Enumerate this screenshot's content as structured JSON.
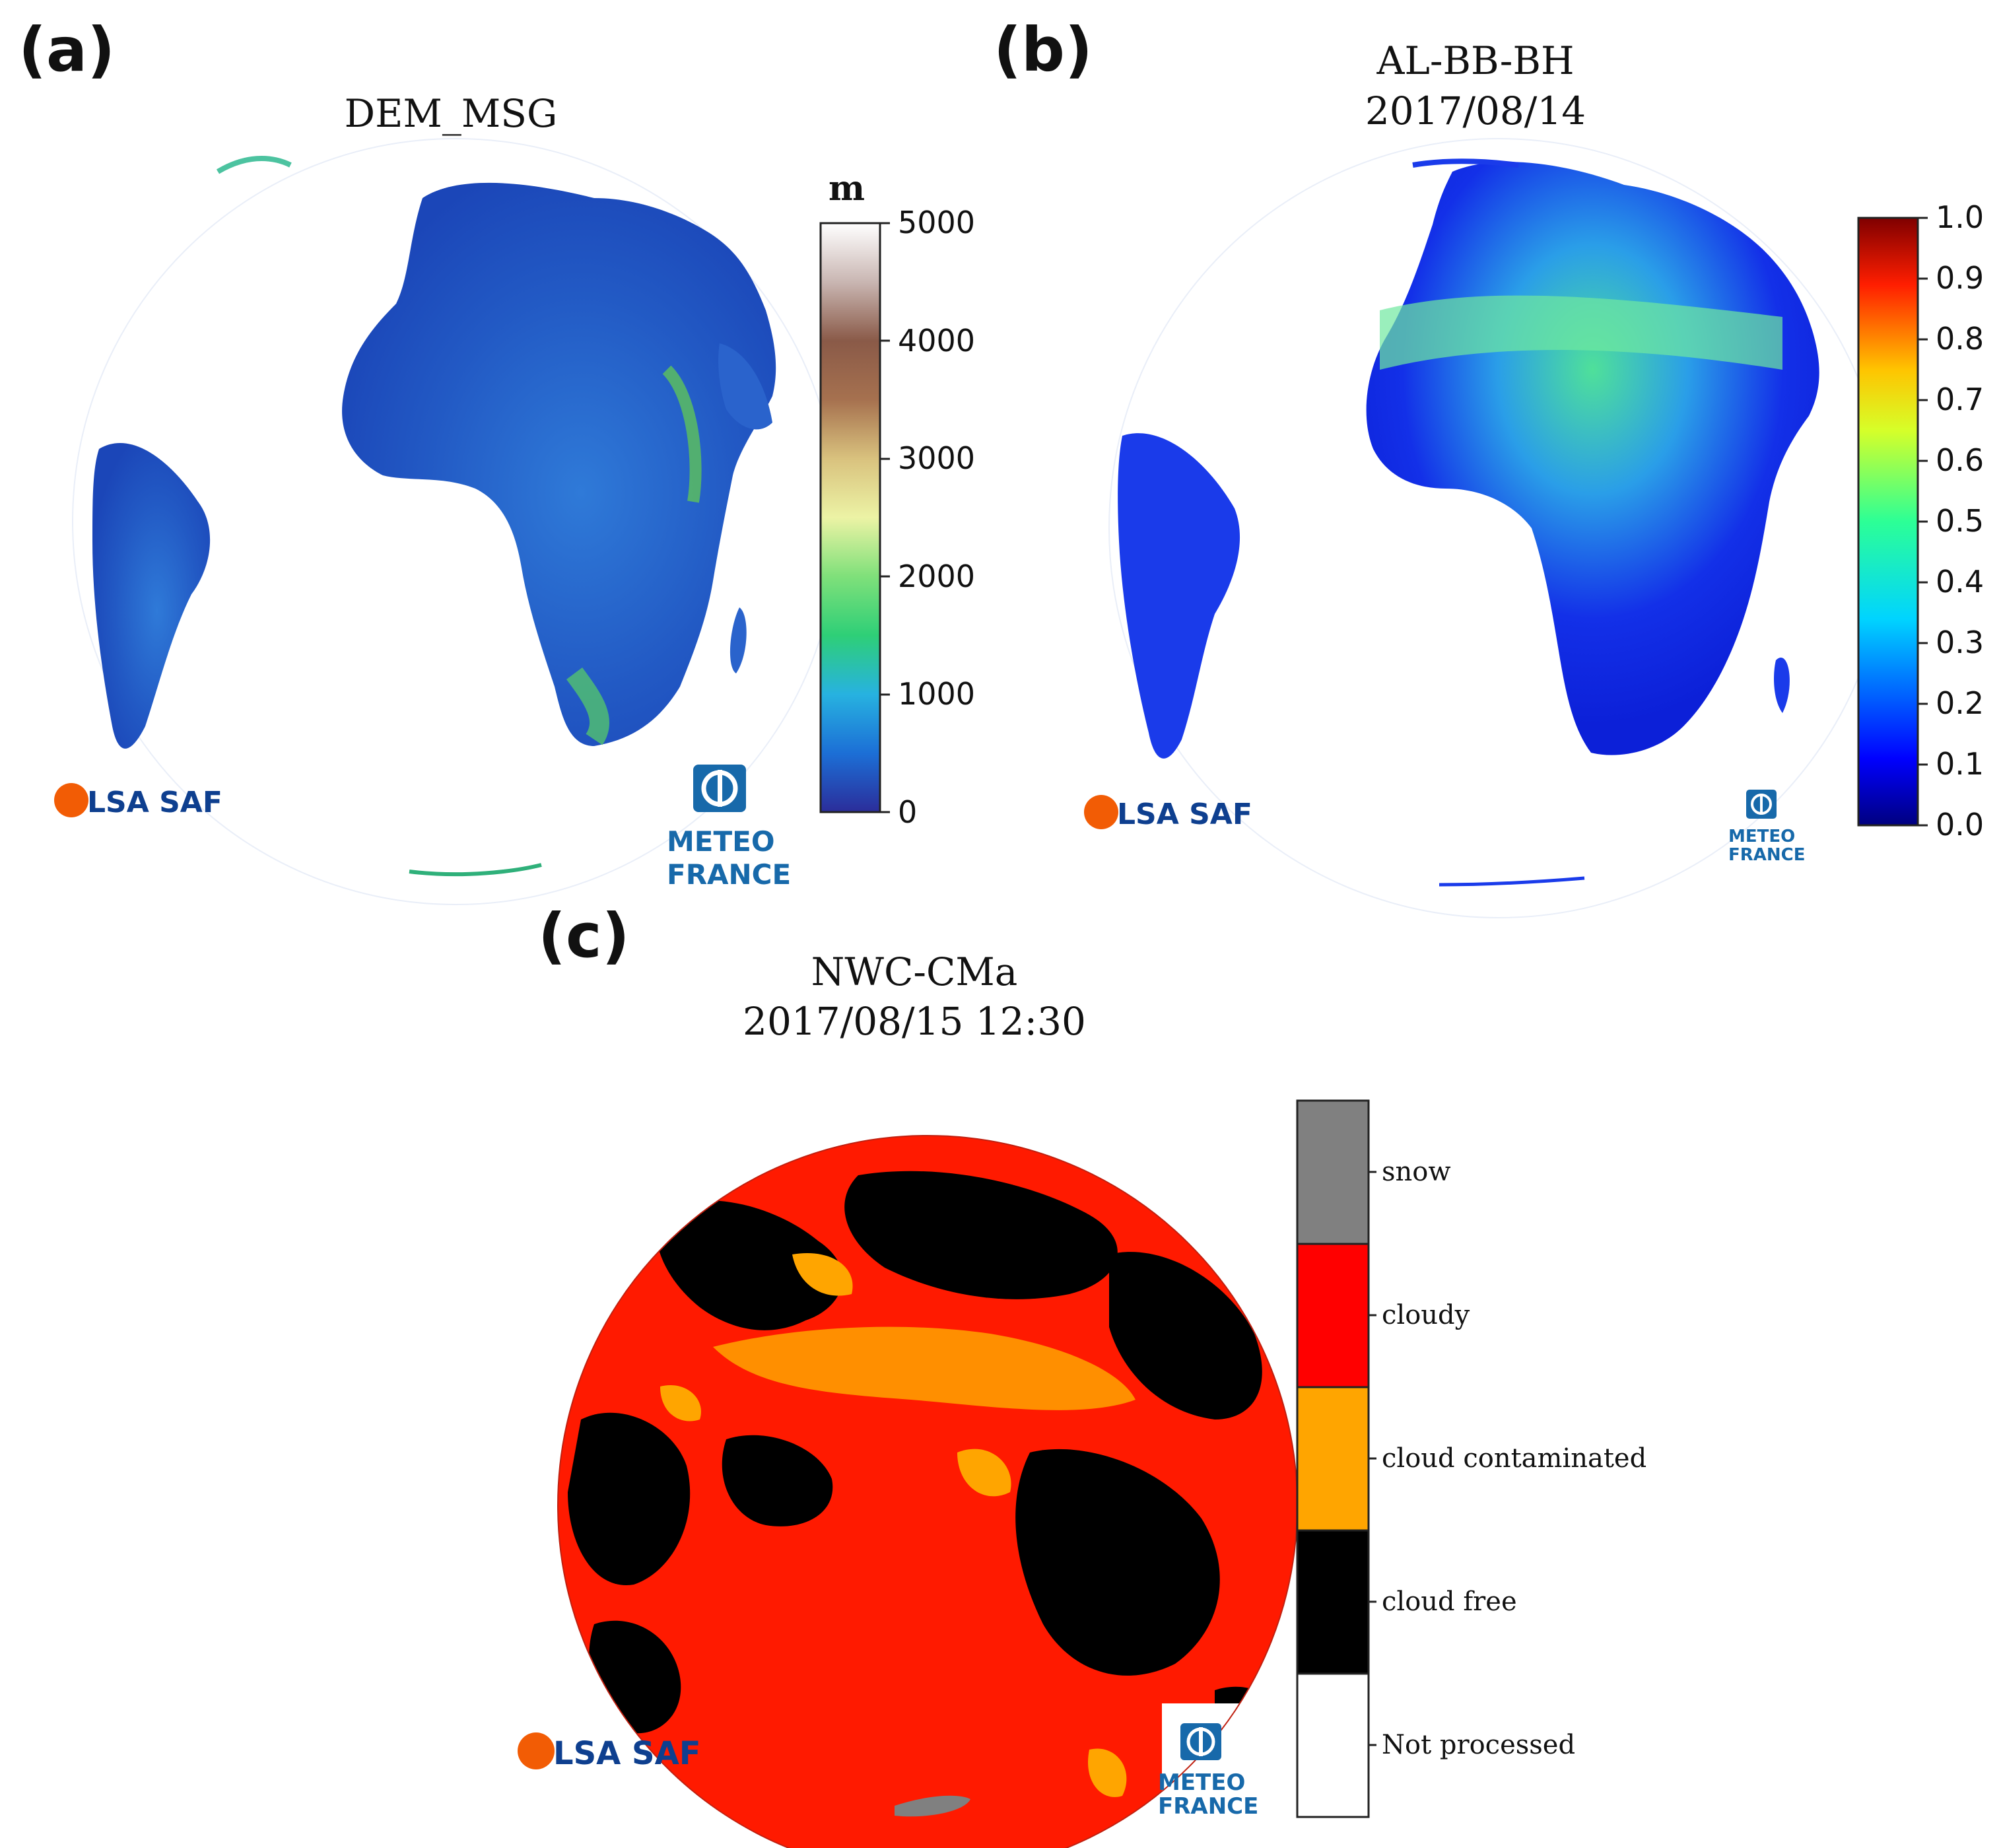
{
  "panels": [
    {
      "label": "(a)",
      "title_lines": [
        "DEM_MSG"
      ],
      "colorbar": {
        "unit": "m",
        "ticks": [
          "5000",
          "4000",
          "3000",
          "2000",
          "1000",
          "0"
        ],
        "range": [
          0,
          5000
        ]
      }
    },
    {
      "label": "(b)",
      "title_lines": [
        "AL-BB-BH",
        "2017/08/14"
      ],
      "colorbar": {
        "ticks": [
          "1.0",
          "0.9",
          "0.8",
          "0.7",
          "0.6",
          "0.5",
          "0.4",
          "0.3",
          "0.2",
          "0.1",
          "0.0"
        ],
        "range": [
          0.0,
          1.0
        ]
      }
    },
    {
      "label": "(c)",
      "title_lines": [
        "NWC-CMa",
        "2017/08/15 12:30"
      ],
      "legend": [
        {
          "label": "snow",
          "color": "#808080"
        },
        {
          "label": "cloudy",
          "color": "#ff0000"
        },
        {
          "label": "cloud contaminated",
          "color": "#ffa500"
        },
        {
          "label": "cloud free",
          "color": "#000000"
        },
        {
          "label": "Not processed",
          "color": "#ffffff"
        }
      ]
    }
  ],
  "logos": {
    "lsa": "LSA SAF",
    "meteo_line1": "METEO",
    "meteo_line2": "FRANCE"
  },
  "colors": {
    "ocean_a": "#ffffff",
    "land_low": "#1f4fc8",
    "cloudy": "#ff1a00",
    "cloud_free": "#000000",
    "contaminated": "#ffa500",
    "lsa_orange": "#f25c05",
    "meteo_blue": "#1769aa"
  }
}
